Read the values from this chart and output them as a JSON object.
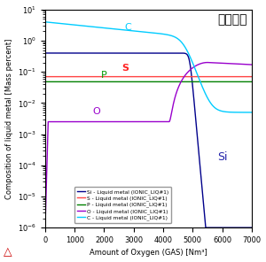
{
  "title": "スラグ無",
  "xlabel": "Amount of Oxygen (GAS) [Nm³]",
  "ylabel": "Composition of liquid metal [Mass percent]",
  "xlim": [
    0,
    7000
  ],
  "xticks": [
    0,
    1000,
    2000,
    3000,
    4000,
    5000,
    6000,
    7000
  ],
  "legend_entries": [
    "Si - Liquid metal (IONIC_LIQ#1)",
    "S - Liquid metal (IONIC_LIQ#1)",
    "P - Liquid metal (IONIC_LIQ#1)",
    "O - Liquid metal (IONIC_LIQ#1)",
    "C - Liquid metal (IONIC_LIQ#1)"
  ],
  "colors": {
    "Si": "#00008B",
    "S": "#FF4444",
    "P": "#008000",
    "O": "#9900CC",
    "C": "#00CCFF"
  },
  "label_colors": {
    "C": "#00CCFF",
    "S": "#FF2222",
    "P": "#009900",
    "O": "#9900CC",
    "Si": "#2222AA"
  }
}
